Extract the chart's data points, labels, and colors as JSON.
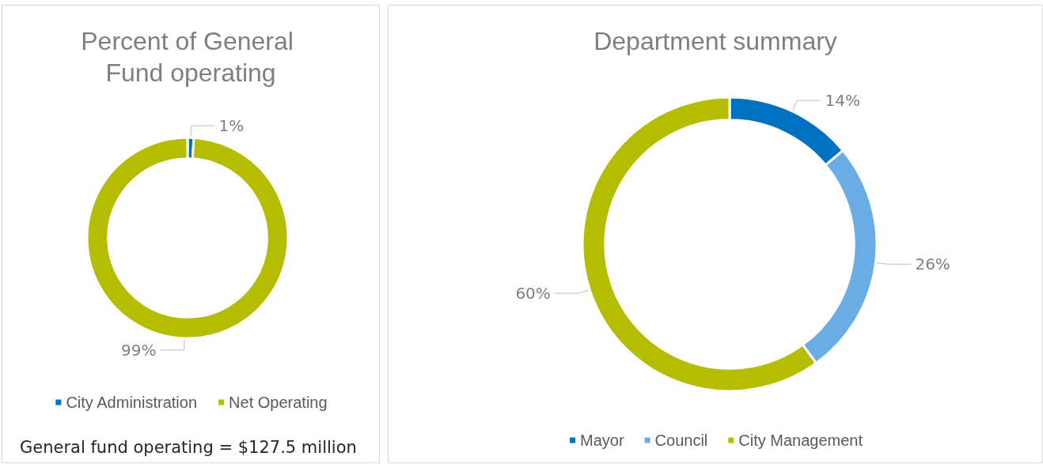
{
  "chart_data": [
    {
      "type": "donut",
      "title": "Percent of General Fund operating",
      "categories": [
        "City Administration",
        "Net Operating"
      ],
      "values": [
        1,
        99
      ],
      "colors": [
        "#0070c0",
        "#b5bd00"
      ],
      "value_labels": [
        "1%",
        "99%"
      ],
      "legend": "bottom",
      "annotations": [
        "General fund operating = $127.5 million"
      ]
    },
    {
      "type": "donut",
      "title": "Department summary",
      "categories": [
        "Mayor",
        "Council",
        "City Management"
      ],
      "values": [
        14,
        26,
        60
      ],
      "colors": [
        "#0070c0",
        "#6aade4",
        "#b5bd00"
      ],
      "value_labels": [
        "14%",
        "26%",
        "60%"
      ],
      "legend": "bottom"
    }
  ]
}
